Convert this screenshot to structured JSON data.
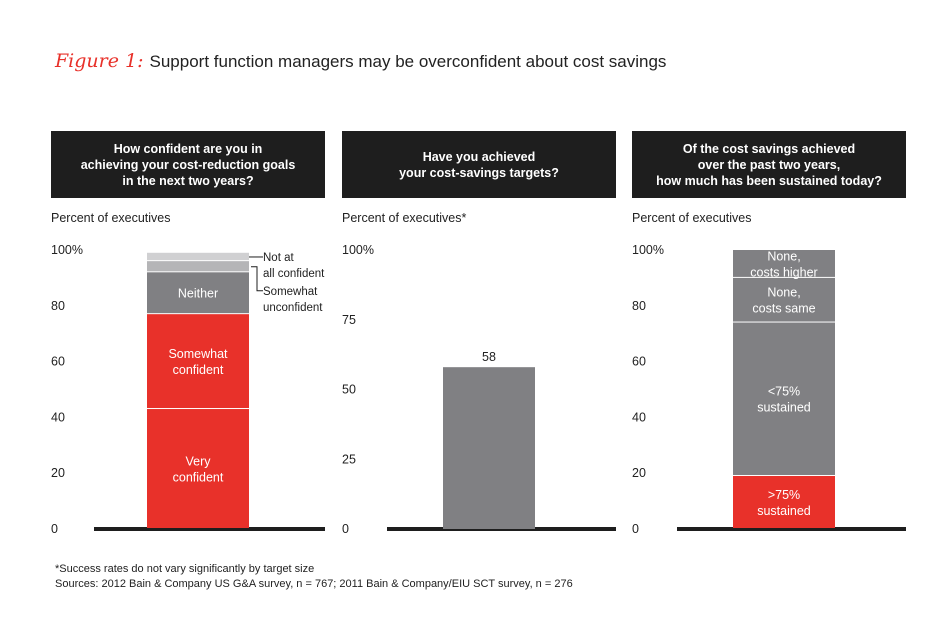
{
  "figure": {
    "label": "Figure 1:",
    "title": "Support function managers may be overconfident about cost savings"
  },
  "colors": {
    "red": "#e8312a",
    "gray": "#808083",
    "light_gray": "#b5b5b7",
    "lightest_gray": "#d0d0d2",
    "axis": "#1e1e1e"
  },
  "panels": [
    {
      "question": "How confident are you in\nachieving your cost-reduction goals\nin the next two years?",
      "ylabel": "Percent of executives"
    },
    {
      "question": "Have you achieved\nyour cost-savings targets?",
      "ylabel": "Percent of executives*"
    },
    {
      "question": "Of the cost savings achieved\nover the past two years,\nhow much has been sustained today?",
      "ylabel": "Percent of executives"
    }
  ],
  "chart_data": [
    {
      "type": "bar",
      "stacked": true,
      "title": "How confident are you in achieving your cost-reduction goals in the next two years?",
      "ylabel": "Percent of executives",
      "ylim": [
        0,
        100
      ],
      "yticks": [
        "0",
        "20",
        "40",
        "60",
        "80",
        "100%"
      ],
      "ytick_values": [
        0,
        20,
        40,
        60,
        80,
        100
      ],
      "segments": [
        {
          "name": "Very confident",
          "label": "Very\nconfident",
          "value": 43,
          "color": "#e8312a"
        },
        {
          "name": "Somewhat confident",
          "label": "Somewhat\nconfident",
          "value": 34,
          "color": "#e8312a"
        },
        {
          "name": "Neither",
          "label": "Neither",
          "value": 15,
          "color": "#808083"
        },
        {
          "name": "Somewhat unconfident",
          "label": "",
          "value": 4,
          "color": "#b5b5b7"
        },
        {
          "name": "Not at all confident",
          "label": "",
          "value": 3,
          "color": "#d0d0d2"
        }
      ],
      "callouts": [
        {
          "text": "Not at\nall confident",
          "segment": 4
        },
        {
          "text": "Somewhat\nunconfident",
          "segment": 3
        }
      ]
    },
    {
      "type": "bar",
      "stacked": false,
      "title": "Have you achieved your cost-savings targets?",
      "ylabel": "Percent of executives*",
      "ylim": [
        0,
        100
      ],
      "yticks": [
        "0",
        "25",
        "50",
        "75",
        "100%"
      ],
      "ytick_values": [
        0,
        25,
        50,
        75,
        100
      ],
      "values": [
        58
      ],
      "data_labels": [
        "58"
      ],
      "color": "#808083"
    },
    {
      "type": "bar",
      "stacked": true,
      "title": "Of the cost savings achieved over the past two years, how much has been sustained today?",
      "ylabel": "Percent of executives",
      "ylim": [
        0,
        100
      ],
      "yticks": [
        "0",
        "20",
        "40",
        "60",
        "80",
        "100%"
      ],
      "ytick_values": [
        0,
        20,
        40,
        60,
        80,
        100
      ],
      "segments": [
        {
          "name": ">75% sustained",
          "label": ">75%\nsustained",
          "value": 19,
          "color": "#e8312a"
        },
        {
          "name": "<75% sustained",
          "label": "<75%\nsustained",
          "value": 55,
          "color": "#808083"
        },
        {
          "name": "None, costs same",
          "label": "None,\ncosts same",
          "value": 16,
          "color": "#808083"
        },
        {
          "name": "None, costs higher",
          "label": "None,\ncosts higher",
          "value": 10,
          "color": "#808083"
        }
      ]
    }
  ],
  "footnotes": {
    "note": "*Success rates do not vary significantly by target size",
    "sources": "Sources: 2012 Bain & Company US G&A survey, n = 767; 2011 Bain & Company/EIU SCT survey, n = 276"
  }
}
